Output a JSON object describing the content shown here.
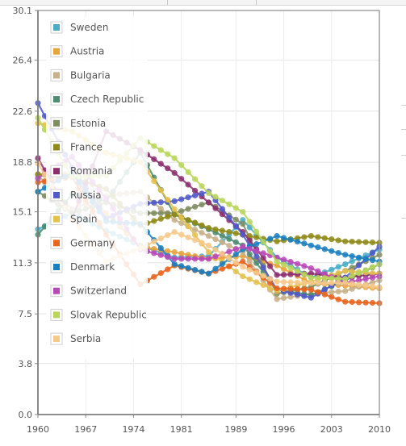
{
  "chart_data": {
    "type": "line",
    "grid": true,
    "legend_position": "top-left",
    "xlim": [
      1960,
      2010
    ],
    "ylim": [
      0.0,
      30.1
    ],
    "x_ticks": [
      "1960",
      "1967",
      "1974",
      "1981",
      "1989",
      "1996",
      "2003",
      "2010"
    ],
    "x_tick_values": [
      1960,
      1967,
      1974,
      1981,
      1989,
      1996,
      2003,
      2010
    ],
    "y_ticks": [
      "0.0",
      "3.8",
      "7.5",
      "11.3",
      "15.1",
      "18.8",
      "22.6",
      "26.4",
      "30.1"
    ],
    "y_tick_values": [
      0.0,
      3.8,
      7.5,
      11.3,
      15.1,
      18.8,
      22.6,
      26.4,
      30.1
    ],
    "series": [
      {
        "name": "Sweden",
        "color": "#4bacc6",
        "x": [
          1960,
          1965,
          1970,
          1975,
          1980,
          1985,
          1990,
          1995,
          2000,
          2005,
          2010
        ],
        "y": [
          13.8,
          15.0,
          13.7,
          12.6,
          11.7,
          11.8,
          14.5,
          11.7,
          10.2,
          11.2,
          12.3
        ]
      },
      {
        "name": "Austria",
        "color": "#e8a33d",
        "x": [
          1960,
          1965,
          1970,
          1975,
          1980,
          1985,
          1990,
          1995,
          2000,
          2005,
          2010
        ],
        "y": [
          17.9,
          17.9,
          15.0,
          12.5,
          12.1,
          11.6,
          11.8,
          11.1,
          9.8,
          9.6,
          9.4
        ]
      },
      {
        "name": "Bulgaria",
        "color": "#c8b08a",
        "x": [
          1960,
          1965,
          1970,
          1975,
          1980,
          1985,
          1990,
          1995,
          2000,
          2005,
          2010
        ],
        "y": [
          17.8,
          15.3,
          16.3,
          16.6,
          14.5,
          13.3,
          12.1,
          8.6,
          9.0,
          9.2,
          10.0
        ]
      },
      {
        "name": "Czech Republic",
        "color": "#4e8b6f",
        "x": [
          1960,
          1965,
          1970,
          1975,
          1980,
          1985,
          1990,
          1995,
          2000,
          2005,
          2010
        ],
        "y": [
          13.4,
          16.4,
          15.9,
          19.5,
          14.9,
          13.8,
          12.6,
          9.3,
          8.9,
          10.0,
          11.2
        ]
      },
      {
        "name": "Estonia",
        "color": "#7f8c5f",
        "x": [
          1960,
          1965,
          1970,
          1975,
          1980,
          1985,
          1990,
          1995,
          2000,
          2005,
          2010
        ],
        "y": [
          16.6,
          15.0,
          15.8,
          15.0,
          15.0,
          15.8,
          14.2,
          9.0,
          9.5,
          10.7,
          11.9
        ]
      },
      {
        "name": "France",
        "color": "#8f8a18",
        "x": [
          1960,
          1965,
          1970,
          1975,
          1980,
          1985,
          1990,
          1995,
          2000,
          2005,
          2010
        ],
        "y": [
          17.9,
          17.7,
          16.8,
          14.1,
          14.9,
          13.9,
          13.4,
          12.9,
          13.3,
          12.9,
          12.8
        ]
      },
      {
        "name": "Romania",
        "color": "#8b2f6e",
        "x": [
          1960,
          1965,
          1970,
          1975,
          1980,
          1985,
          1990,
          1995,
          2000,
          2005,
          2010
        ],
        "y": [
          19.1,
          14.6,
          21.1,
          19.7,
          18.0,
          15.8,
          13.6,
          10.4,
          10.5,
          10.2,
          10.5
        ]
      },
      {
        "name": "Russia",
        "color": "#5059c9",
        "x": [
          1960,
          1965,
          1970,
          1975,
          1980,
          1985,
          1990,
          1995,
          2000,
          2005,
          2010
        ],
        "y": [
          23.2,
          18.4,
          14.6,
          15.7,
          15.9,
          16.6,
          13.4,
          9.3,
          8.7,
          10.2,
          12.5
        ]
      },
      {
        "name": "Spain",
        "color": "#e4c14d",
        "x": [
          1960,
          1965,
          1970,
          1975,
          1980,
          1985,
          1990,
          1995,
          2000,
          2005,
          2010
        ],
        "y": [
          21.7,
          21.1,
          19.5,
          18.8,
          15.3,
          12.1,
          10.3,
          9.2,
          9.9,
          10.7,
          10.5
        ]
      },
      {
        "name": "Germany",
        "color": "#e8631c",
        "x": [
          1960,
          1965,
          1970,
          1975,
          1980,
          1985,
          1990,
          1995,
          2000,
          2005,
          2010
        ],
        "y": [
          17.3,
          17.7,
          13.4,
          9.7,
          11.1,
          10.5,
          11.4,
          9.4,
          9.3,
          8.4,
          8.3
        ]
      },
      {
        "name": "Denmark",
        "color": "#1a7fbf",
        "x": [
          1960,
          1965,
          1970,
          1975,
          1980,
          1985,
          1990,
          1995,
          2000,
          2005,
          2010
        ],
        "y": [
          16.6,
          18.0,
          14.4,
          14.2,
          11.2,
          10.5,
          12.3,
          13.3,
          12.6,
          11.9,
          11.4
        ]
      },
      {
        "name": "Switzerland",
        "color": "#b949b8",
        "x": [
          1960,
          1965,
          1970,
          1975,
          1980,
          1985,
          1990,
          1995,
          2000,
          2005,
          2010
        ],
        "y": [
          17.6,
          19.2,
          16.1,
          12.3,
          11.6,
          11.6,
          12.5,
          11.7,
          10.9,
          9.8,
          10.3
        ]
      },
      {
        "name": "Slovak Republic",
        "color": "#b9d65a",
        "x": [
          1960,
          1965,
          1970,
          1975,
          1980,
          1985,
          1990,
          1995,
          2000,
          2005,
          2010
        ],
        "y": [
          22.1,
          17.7,
          17.8,
          20.6,
          19.1,
          16.5,
          15.1,
          11.4,
          10.2,
          10.1,
          11.2
        ]
      },
      {
        "name": "Serbia",
        "color": "#f4c98a",
        "x": [
          1960,
          1965,
          1970,
          1975,
          1980,
          1985,
          1990,
          1995,
          2000,
          2005,
          2010
        ],
        "y": [
          18.7,
          14.6,
          11.4,
          12.4,
          13.6,
          12.6,
          11.0,
          9.9,
          9.8,
          9.8,
          9.5
        ]
      }
    ]
  }
}
